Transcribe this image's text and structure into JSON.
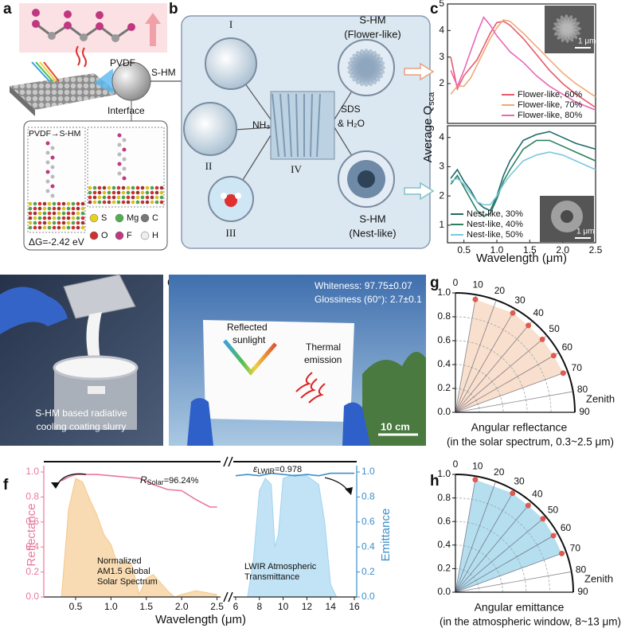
{
  "labels": [
    "a",
    "b",
    "c",
    "d",
    "e",
    "f",
    "g",
    "h"
  ],
  "a": {
    "pvdf": "PVDF",
    "shm": "S-HM",
    "interface": "Interface",
    "sim_title": "PVDF→S-HM",
    "energy": "ΔG=-2.42 eV",
    "atoms": [
      "S",
      "Mg",
      "C",
      "O",
      "F",
      "H"
    ]
  },
  "b": {
    "steps": [
      "I",
      "II",
      "III",
      "IV"
    ],
    "nh3": "NH₃",
    "sds": [
      "SDS",
      "& H₂O"
    ],
    "flower": [
      "S-HM",
      "(Flower-like)"
    ],
    "nest": [
      "S-HM",
      "(Nest-like)"
    ]
  },
  "c": {
    "scale_bars": [
      "1 μm",
      "1 μm"
    ]
  },
  "d": {
    "caption": [
      "S-HM based radiative",
      "cooling coating slurry"
    ]
  },
  "e": {
    "whiteness": "Whiteness: 97.75±0.07",
    "glossiness": "Glossiness (60°): 2.7±0.1",
    "reflected": [
      "Reflected",
      "sunlight"
    ],
    "thermal": [
      "Thermal",
      "emission"
    ],
    "scale": "10 cm"
  },
  "chart_data": [
    {
      "type": "line",
      "ylabel": {
        "main": "Average Q",
        "sub": "sca"
      },
      "x": [
        0.3,
        0.4,
        0.5,
        0.6,
        0.7,
        0.8,
        0.9,
        1.0,
        1.1,
        1.2,
        1.4,
        1.6,
        1.8,
        2.0,
        2.2,
        2.5
      ],
      "xlim": [
        0.25,
        2.5
      ],
      "ylim": [
        0.5,
        5
      ],
      "yticks": [
        2,
        3,
        4,
        5
      ],
      "legend": "lower right",
      "series": [
        {
          "name": "Flower-like, 60%",
          "color": "#e85a6a",
          "values": [
            3.0,
            1.8,
            2.3,
            2.6,
            2.9,
            3.4,
            3.9,
            4.3,
            4.35,
            4.2,
            3.7,
            3.1,
            2.5,
            2.0,
            1.6,
            1.1
          ]
        },
        {
          "name": "Flower-like, 70%",
          "color": "#f0a878",
          "values": [
            1.6,
            1.9,
            1.9,
            2.2,
            2.7,
            3.2,
            3.7,
            4.1,
            4.4,
            4.35,
            3.9,
            3.4,
            2.9,
            2.4,
            2.0,
            1.5
          ]
        },
        {
          "name": "Flower-like, 80%",
          "color": "#e868b8",
          "values": [
            2.5,
            1.9,
            2.5,
            3.2,
            3.9,
            4.5,
            4.2,
            3.8,
            3.5,
            3.2,
            2.8,
            2.3,
            1.9,
            1.6,
            1.3,
            1.0
          ]
        }
      ]
    },
    {
      "type": "line",
      "xlabel": "Wavelength (μm)",
      "x": [
        0.3,
        0.4,
        0.5,
        0.6,
        0.7,
        0.8,
        0.9,
        1.0,
        1.1,
        1.2,
        1.4,
        1.6,
        1.8,
        2.0,
        2.2,
        2.5
      ],
      "xlim": [
        0.25,
        2.5
      ],
      "xticks": [
        0.5,
        {
          "value": 1,
          "label": "1.0"
        },
        1.5,
        {
          "value": 2,
          "label": "2.0"
        },
        2.5
      ],
      "ylim": [
        0.4,
        4.4
      ],
      "yticks": [
        1,
        2,
        3,
        4
      ],
      "legend": "lower left",
      "series": [
        {
          "name": "Nest-like, 30%",
          "color": "#1e6b6b",
          "values": [
            2.6,
            2.9,
            2.5,
            2.2,
            1.8,
            1.6,
            1.5,
            2.0,
            2.7,
            3.2,
            3.9,
            4.1,
            4.2,
            4.0,
            3.8,
            3.6
          ]
        },
        {
          "name": "Nest-like, 40%",
          "color": "#2e8060",
          "values": [
            2.4,
            2.7,
            2.3,
            1.9,
            1.5,
            1.3,
            1.4,
            1.9,
            2.5,
            2.9,
            3.6,
            3.9,
            3.9,
            3.7,
            3.5,
            3.2
          ]
        },
        {
          "name": "Nest-like, 50%",
          "color": "#7cc8dc",
          "values": [
            2.5,
            2.6,
            2.4,
            2.1,
            1.8,
            1.7,
            1.7,
            2.0,
            2.4,
            2.7,
            3.2,
            3.4,
            3.5,
            3.4,
            3.2,
            2.9
          ]
        }
      ]
    },
    {
      "type": "broken-line",
      "xlabel": "Wavelength (μm)",
      "ylabel": "Reflectance",
      "y2label": "Emittance",
      "ylim": [
        0,
        1
      ],
      "yticks": [
        {
          "value": 0,
          "label": "0.0"
        },
        0.2,
        0.4,
        0.6,
        0.8,
        {
          "value": 1,
          "label": "1.0"
        }
      ],
      "y2lim": [
        0,
        1
      ],
      "y2ticks": [
        {
          "value": 0,
          "label": "0.0"
        },
        0.2,
        0.4,
        0.6,
        0.8,
        {
          "value": 1,
          "label": "1.0"
        }
      ],
      "annotations": [
        {
          "main": "R",
          "sub": "Solar",
          "rest": "=96.24%"
        },
        {
          "main": "ε",
          "sub": "LWIR",
          "rest": "=0.978"
        },
        {
          "lines": [
            "Normalized",
            "AM1.5 Global",
            "Solar Spectrum"
          ]
        },
        {
          "lines": [
            "LWIR Atmospheric",
            "Transmittance"
          ]
        }
      ],
      "segments": [
        {
          "xlim": [
            0.05,
            2.55
          ],
          "xticks": [
            0.5,
            {
              "value": 1,
              "label": "1.0"
            },
            1.5,
            {
              "value": 2,
              "label": "2.0"
            },
            2.5
          ],
          "series": [
            {
              "color": "#f5c88a",
              "fill": true,
              "x": [
                0.3,
                0.4,
                0.5,
                0.6,
                0.7,
                0.8,
                0.9,
                1.0,
                1.1,
                1.2,
                1.3,
                1.4,
                1.5,
                1.6,
                1.8,
                1.9,
                2.0,
                2.2,
                2.5
              ],
              "values": [
                0.0,
                0.7,
                0.95,
                0.92,
                0.78,
                0.66,
                0.5,
                0.42,
                0.25,
                0.3,
                0.25,
                0.02,
                0.15,
                0.18,
                0.05,
                0.0,
                0.02,
                0.05,
                0.02
              ]
            },
            {
              "color": "#e8789a",
              "x": [
                0.3,
                0.4,
                0.5,
                0.6,
                0.8,
                1.0,
                1.2,
                1.4,
                1.6,
                1.8,
                2.0,
                2.2,
                2.4,
                2.5
              ],
              "values": [
                0.93,
                0.96,
                0.98,
                0.98,
                0.98,
                0.97,
                0.96,
                0.95,
                0.9,
                0.86,
                0.85,
                0.78,
                0.72,
                0.72
              ]
            }
          ]
        },
        {
          "xlim": [
            5.8,
            16.2
          ],
          "xticks": [
            6,
            8,
            10,
            12,
            14,
            16
          ],
          "series": [
            {
              "color": "#9fd4f0",
              "fill": true,
              "axis": "y2",
              "x": [
                7,
                7.5,
                8,
                8.5,
                9,
                9.3,
                9.6,
                10,
                11,
                12,
                13,
                13.5,
                14,
                14.5
              ],
              "values": [
                0,
                0.3,
                0.85,
                0.95,
                0.9,
                0.4,
                0.5,
                0.95,
                0.98,
                0.97,
                0.9,
                0.6,
                0.1,
                0
              ]
            },
            {
              "color": "#3d8fc8",
              "axis": "y2",
              "x": [
                6,
                7,
                8,
                9,
                10,
                11,
                12,
                13,
                14,
                15,
                16
              ],
              "values": [
                0.97,
                0.98,
                0.97,
                0.99,
                0.98,
                0.97,
                0.98,
                0.97,
                0.99,
                0.99,
                0.99
              ]
            }
          ]
        }
      ]
    },
    {
      "type": "polar",
      "title": "Angular reflectance",
      "subtitle": "(in the solar spectrum, 0.3~2.5 μm)",
      "angle_label": "Zenith",
      "angles": [
        10,
        30,
        40,
        50,
        60,
        70
      ],
      "values": [
        0.96,
        0.96,
        0.95,
        0.95,
        0.95,
        0.96
      ],
      "rlim": [
        0,
        1
      ],
      "rticks": [
        {
          "value": 0,
          "label": "0.0"
        },
        0.2,
        0.4,
        0.6,
        0.8,
        {
          "value": 1,
          "label": "1.0"
        }
      ],
      "angle_ticks": [
        0,
        10,
        20,
        30,
        40,
        50,
        60,
        70,
        80,
        90
      ],
      "color": "#e05a50",
      "fill": "#f8d9c4"
    },
    {
      "type": "polar",
      "title": "Angular emittance",
      "subtitle": "(in the atmospheric window, 8~13 μm)",
      "angle_label": "Zenith",
      "angles": [
        10,
        30,
        40,
        50,
        60,
        70
      ],
      "values": [
        0.97,
        0.97,
        0.96,
        0.97,
        0.96,
        0.96
      ],
      "rlim": [
        0,
        1
      ],
      "rticks": [
        {
          "value": 0,
          "label": "0.0"
        },
        0.2,
        0.4,
        0.6,
        0.8,
        {
          "value": 1,
          "label": "1.0"
        }
      ],
      "angle_ticks": [
        0,
        10,
        20,
        30,
        40,
        50,
        60,
        70,
        80,
        90
      ],
      "color": "#e05a50",
      "fill": "#a8d8ec"
    }
  ]
}
